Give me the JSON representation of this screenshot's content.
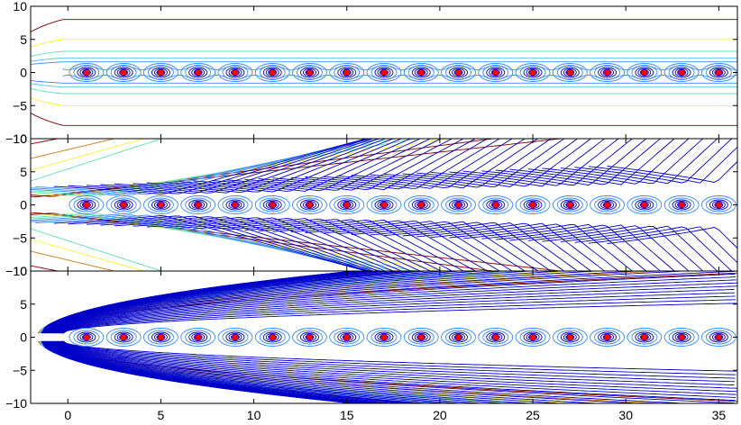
{
  "chart_data": [
    {
      "type": "contour",
      "panel": "top",
      "xlim": [
        -2,
        36
      ],
      "ylim": [
        -10,
        10
      ],
      "xticks": [
        0,
        5,
        10,
        15,
        20,
        25,
        30,
        35
      ],
      "yticks": [
        -10,
        -5,
        0,
        5,
        10
      ],
      "ytick_labels": [
        "−10",
        "−5",
        "0",
        "5",
        "10"
      ],
      "grid": false,
      "field_mode": "symmetric",
      "contour_levels": "banded, symmetric about y=0; outermost contours near y=±8",
      "point_marker": "red dot",
      "points": [
        {
          "x": 1,
          "y": 0
        },
        {
          "x": 3,
          "y": 0
        },
        {
          "x": 5,
          "y": 0
        },
        {
          "x": 7,
          "y": 0
        },
        {
          "x": 9,
          "y": 0
        },
        {
          "x": 11,
          "y": 0
        },
        {
          "x": 13,
          "y": 0
        },
        {
          "x": 15,
          "y": 0
        },
        {
          "x": 17,
          "y": 0
        },
        {
          "x": 19,
          "y": 0
        },
        {
          "x": 21,
          "y": 0
        },
        {
          "x": 23,
          "y": 0
        },
        {
          "x": 25,
          "y": 0
        },
        {
          "x": 27,
          "y": 0
        },
        {
          "x": 29,
          "y": 0
        },
        {
          "x": 31,
          "y": 0
        },
        {
          "x": 33,
          "y": 0
        },
        {
          "x": 35,
          "y": 0
        }
      ]
    },
    {
      "type": "contour",
      "panel": "middle",
      "xlim": [
        -2,
        36
      ],
      "ylim": [
        -10,
        10
      ],
      "xticks": [
        0,
        5,
        10,
        15,
        20,
        25,
        30,
        35
      ],
      "yticks": [
        -10,
        -5,
        0,
        5,
        10
      ],
      "ytick_labels": [
        "−10",
        "−5",
        "0",
        "5",
        "10"
      ],
      "grid": false,
      "field_mode": "asymmetric",
      "contour_levels": "fan of diagonal contours spreading from the left; dense blue band along y=0",
      "point_marker": "red dot",
      "points": [
        {
          "x": 1,
          "y": 0
        },
        {
          "x": 3,
          "y": 0
        },
        {
          "x": 5,
          "y": 0
        },
        {
          "x": 7,
          "y": 0
        },
        {
          "x": 9,
          "y": 0
        },
        {
          "x": 11,
          "y": 0
        },
        {
          "x": 13,
          "y": 0
        },
        {
          "x": 15,
          "y": 0
        },
        {
          "x": 17,
          "y": 0
        },
        {
          "x": 19,
          "y": 0
        },
        {
          "x": 21,
          "y": 0
        },
        {
          "x": 23,
          "y": 0
        },
        {
          "x": 25,
          "y": 0
        },
        {
          "x": 27,
          "y": 0
        },
        {
          "x": 29,
          "y": 0
        },
        {
          "x": 31,
          "y": 0
        },
        {
          "x": 33,
          "y": 0
        },
        {
          "x": 35,
          "y": 0
        }
      ]
    },
    {
      "type": "contour",
      "panel": "bottom",
      "xlim": [
        -2,
        36
      ],
      "ylim": [
        -10,
        10
      ],
      "xticks": [
        0,
        5,
        10,
        15,
        20,
        25,
        30,
        35
      ],
      "xtick_labels": [
        "0",
        "5",
        "10",
        "15",
        "20",
        "25",
        "30",
        "35"
      ],
      "yticks": [
        -10,
        -5,
        0,
        5,
        10
      ],
      "ytick_labels": [
        "−10",
        "−5",
        "0",
        "5",
        "10"
      ],
      "grid": false,
      "field_mode": "parabolic",
      "contour_levels": "nested parabolic contours opening to the right, symmetric about y=0",
      "point_marker": "red dot",
      "points": [
        {
          "x": 1,
          "y": 0
        },
        {
          "x": 3,
          "y": 0
        },
        {
          "x": 5,
          "y": 0
        },
        {
          "x": 7,
          "y": 0
        },
        {
          "x": 9,
          "y": 0
        },
        {
          "x": 11,
          "y": 0
        },
        {
          "x": 13,
          "y": 0
        },
        {
          "x": 15,
          "y": 0
        },
        {
          "x": 17,
          "y": 0
        },
        {
          "x": 19,
          "y": 0
        },
        {
          "x": 21,
          "y": 0
        },
        {
          "x": 23,
          "y": 0
        },
        {
          "x": 25,
          "y": 0
        },
        {
          "x": 27,
          "y": 0
        },
        {
          "x": 29,
          "y": 0
        },
        {
          "x": 31,
          "y": 0
        },
        {
          "x": 33,
          "y": 0
        },
        {
          "x": 35,
          "y": 0
        }
      ]
    }
  ],
  "colors": {
    "point": "#ff0000",
    "point_edge": "#0000cc",
    "contour_palette": [
      "#00007f",
      "#0000c8",
      "#1f3cff",
      "#3c8cff",
      "#4fc0e8",
      "#5fe0b0",
      "#b8f07a",
      "#f5f03a",
      "#c87a1a",
      "#7f0000"
    ]
  }
}
